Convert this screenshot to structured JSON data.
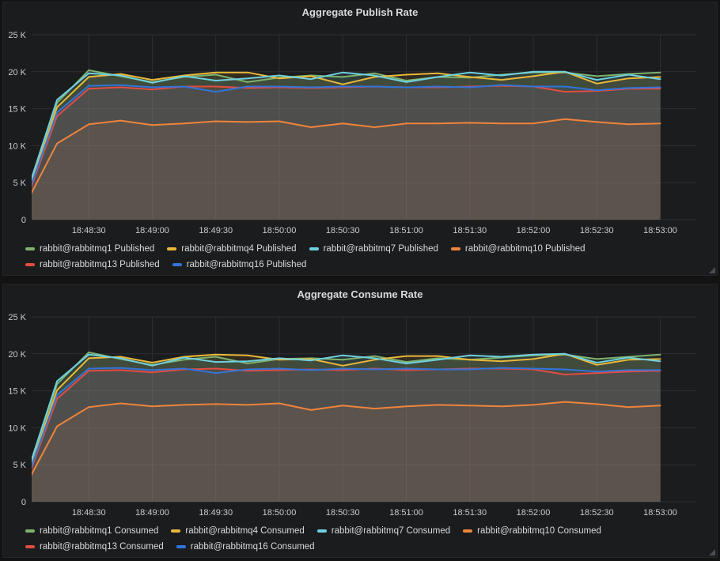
{
  "theme": {
    "page_bg": "#131314",
    "panel_bg": "#1b1c1e",
    "grid_color": "#2d2f32",
    "tick_text_color": "#c9cbce",
    "legend_text_color": "#d8d9da",
    "title_text_color": "#d8d9da",
    "fill_opacity": 0.11
  },
  "chart_data": [
    {
      "type": "area",
      "title": "Aggregate Publish Rate",
      "xlabel": "",
      "ylabel": "",
      "grid": true,
      "legend_position": "bottom-left",
      "ylim": [
        0,
        25000
      ],
      "y_ticks": [
        {
          "value": 0,
          "label": "0"
        },
        {
          "value": 5000,
          "label": "5 K"
        },
        {
          "value": 10000,
          "label": "10 K"
        },
        {
          "value": 15000,
          "label": "15 K"
        },
        {
          "value": 20000,
          "label": "20 K"
        },
        {
          "value": 25000,
          "label": "25 K"
        }
      ],
      "x_axis_seconds_range": [
        3,
        317
      ],
      "x_ticks": [
        {
          "seconds": 30,
          "label": "18:48:30"
        },
        {
          "seconds": 60,
          "label": "18:49:00"
        },
        {
          "seconds": 90,
          "label": "18:49:30"
        },
        {
          "seconds": 120,
          "label": "18:50:00"
        },
        {
          "seconds": 150,
          "label": "18:50:30"
        },
        {
          "seconds": 180,
          "label": "18:51:00"
        },
        {
          "seconds": 210,
          "label": "18:51:30"
        },
        {
          "seconds": 240,
          "label": "18:52:00"
        },
        {
          "seconds": 270,
          "label": "18:52:30"
        },
        {
          "seconds": 300,
          "label": "18:53:00"
        }
      ],
      "x_seconds": [
        0,
        15,
        30,
        45,
        60,
        75,
        90,
        105,
        120,
        135,
        150,
        165,
        180,
        195,
        210,
        225,
        240,
        255,
        270,
        285,
        300
      ],
      "series": [
        {
          "name": "rabbit@rabbitmq1 Published",
          "color": "#7EB26D",
          "values": [
            2600,
            15800,
            20200,
            19400,
            18600,
            19300,
            19600,
            18600,
            19200,
            19500,
            19300,
            19800,
            18800,
            19300,
            19200,
            19600,
            19900,
            19900,
            19400,
            19700,
            19900
          ]
        },
        {
          "name": "rabbit@rabbitmq4 Published",
          "color": "#EAB839",
          "values": [
            2400,
            15200,
            19300,
            19700,
            18900,
            19500,
            19900,
            19900,
            19100,
            19400,
            18300,
            19300,
            19600,
            19800,
            19300,
            18900,
            19400,
            20000,
            18400,
            19100,
            19300
          ]
        },
        {
          "name": "rabbit@rabbitmq7 Published",
          "color": "#6ED0E0",
          "values": [
            3000,
            16200,
            19800,
            19500,
            18500,
            19400,
            18800,
            19100,
            19500,
            19000,
            19900,
            19500,
            18600,
            19300,
            19900,
            19500,
            20000,
            20000,
            18900,
            19600,
            19000
          ]
        },
        {
          "name": "rabbit@rabbitmq10 Published",
          "color": "#EF843C",
          "values": [
            2000,
            10300,
            12900,
            13400,
            12800,
            13000,
            13300,
            13200,
            13300,
            12500,
            13000,
            12500,
            13000,
            13000,
            13100,
            13000,
            13000,
            13600,
            13200,
            12900,
            13000
          ]
        },
        {
          "name": "rabbit@rabbitmq13 Published",
          "color": "#E24D42",
          "values": [
            2300,
            14000,
            17700,
            17900,
            17600,
            18000,
            18000,
            17800,
            17900,
            17800,
            17900,
            18000,
            17900,
            17900,
            18000,
            18100,
            18000,
            17300,
            17400,
            17700,
            17700
          ]
        },
        {
          "name": "rabbit@rabbitmq16 Published",
          "color": "#3274D9",
          "values": [
            2500,
            14500,
            18100,
            18200,
            17900,
            18000,
            17300,
            18000,
            18000,
            17900,
            18000,
            18000,
            17900,
            18000,
            17900,
            18200,
            18000,
            18000,
            17500,
            17800,
            17900
          ]
        }
      ]
    },
    {
      "type": "area",
      "title": "Aggregate Consume Rate",
      "xlabel": "",
      "ylabel": "",
      "grid": true,
      "legend_position": "bottom-left",
      "ylim": [
        0,
        25000
      ],
      "y_ticks": [
        {
          "value": 0,
          "label": "0"
        },
        {
          "value": 5000,
          "label": "5 K"
        },
        {
          "value": 10000,
          "label": "10 K"
        },
        {
          "value": 15000,
          "label": "15 K"
        },
        {
          "value": 20000,
          "label": "20 K"
        },
        {
          "value": 25000,
          "label": "25 K"
        }
      ],
      "x_axis_seconds_range": [
        3,
        317
      ],
      "x_ticks": [
        {
          "seconds": 30,
          "label": "18:48:30"
        },
        {
          "seconds": 60,
          "label": "18:49:00"
        },
        {
          "seconds": 90,
          "label": "18:49:30"
        },
        {
          "seconds": 120,
          "label": "18:50:00"
        },
        {
          "seconds": 150,
          "label": "18:50:30"
        },
        {
          "seconds": 180,
          "label": "18:51:00"
        },
        {
          "seconds": 210,
          "label": "18:51:30"
        },
        {
          "seconds": 240,
          "label": "18:52:00"
        },
        {
          "seconds": 270,
          "label": "18:52:30"
        },
        {
          "seconds": 300,
          "label": "18:53:00"
        }
      ],
      "x_seconds": [
        0,
        15,
        30,
        45,
        60,
        75,
        90,
        105,
        120,
        135,
        150,
        165,
        180,
        195,
        210,
        225,
        240,
        255,
        270,
        285,
        300
      ],
      "series": [
        {
          "name": "rabbit@rabbitmq1 Consumed",
          "color": "#7EB26D",
          "values": [
            2700,
            15900,
            20200,
            19300,
            18500,
            19200,
            19600,
            18700,
            19300,
            19400,
            19200,
            19700,
            18900,
            19400,
            19200,
            19500,
            19800,
            19900,
            19300,
            19600,
            19900
          ]
        },
        {
          "name": "rabbit@rabbitmq4 Consumed",
          "color": "#EAB839",
          "values": [
            2400,
            15100,
            19400,
            19600,
            18800,
            19600,
            19900,
            19800,
            19200,
            19300,
            18400,
            19200,
            19700,
            19700,
            19200,
            19000,
            19300,
            20000,
            18500,
            19200,
            19300
          ]
        },
        {
          "name": "rabbit@rabbitmq7 Consumed",
          "color": "#6ED0E0",
          "values": [
            3100,
            16300,
            19900,
            19400,
            18400,
            19500,
            18900,
            19000,
            19400,
            19100,
            19800,
            19400,
            18700,
            19200,
            19800,
            19600,
            19900,
            20000,
            18800,
            19500,
            19000
          ]
        },
        {
          "name": "rabbit@rabbitmq10 Consumed",
          "color": "#EF843C",
          "values": [
            2100,
            10200,
            12800,
            13300,
            12900,
            13100,
            13200,
            13100,
            13300,
            12400,
            13000,
            12600,
            12900,
            13100,
            13000,
            12900,
            13100,
            13500,
            13200,
            12800,
            13000
          ]
        },
        {
          "name": "rabbit@rabbitmq13 Consumed",
          "color": "#E24D42",
          "values": [
            2300,
            13900,
            17700,
            17800,
            17500,
            17900,
            18000,
            17700,
            17800,
            17900,
            17800,
            18000,
            17800,
            17900,
            18000,
            18000,
            17900,
            17200,
            17400,
            17600,
            17700
          ]
        },
        {
          "name": "rabbit@rabbitmq16 Consumed",
          "color": "#3274D9",
          "values": [
            2500,
            14400,
            18000,
            18100,
            17800,
            18000,
            17400,
            17900,
            18000,
            17800,
            18000,
            17900,
            18000,
            17900,
            17900,
            18100,
            18000,
            17900,
            17600,
            17800,
            17800
          ]
        }
      ]
    }
  ]
}
